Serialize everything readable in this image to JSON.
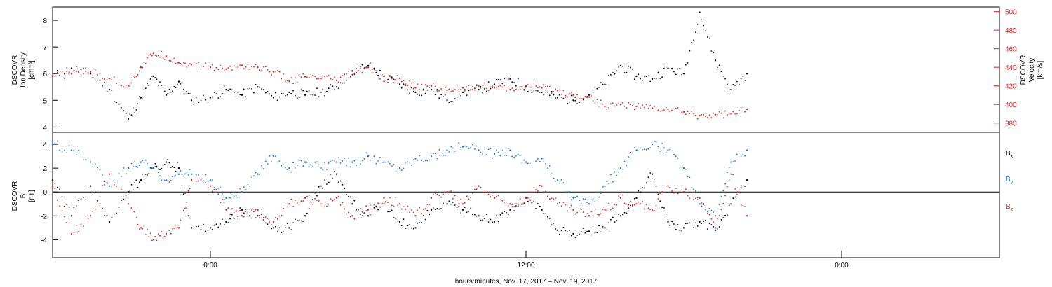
{
  "footer_label": "hours:minutes, Nov. 17, 2017 – Nov. 19, 2017",
  "chart_data": [
    {
      "type": "scatter",
      "panel": "plasma",
      "left_axis_label": [
        "DSCOVR",
        "Ion Density",
        "[cm⁻³]"
      ],
      "right_axis_label": [
        "DSCOVR",
        "Velocity",
        "[km/s]"
      ],
      "xlim": [
        -0.5,
        2.5
      ],
      "ylim_left": [
        3.8,
        8.5
      ],
      "ylim_right": [
        370,
        505
      ],
      "left_ticks": [
        4,
        5,
        6,
        7,
        8
      ],
      "right_ticks": [
        380,
        400,
        420,
        440,
        460,
        480,
        500
      ],
      "series": [
        {
          "axis": "left",
          "color": "#000000",
          "x": [
            -0.5,
            -0.44,
            -0.38,
            -0.32,
            -0.26,
            -0.22,
            -0.18,
            -0.14,
            -0.1,
            -0.06,
            0.0,
            0.05,
            0.1,
            0.15,
            0.2,
            0.25,
            0.3,
            0.35,
            0.4,
            0.45,
            0.5,
            0.55,
            0.6,
            0.65,
            0.7,
            0.75,
            0.8,
            0.85,
            0.9,
            0.95,
            1.0,
            1.05,
            1.1,
            1.15,
            1.2,
            1.25,
            1.3,
            1.35,
            1.4,
            1.45,
            1.5,
            1.55,
            1.6,
            1.65,
            1.7
          ],
          "y": [
            5.9,
            6.2,
            6.0,
            5.4,
            4.3,
            5.1,
            5.9,
            5.2,
            5.7,
            5.0,
            5.1,
            5.4,
            5.2,
            5.5,
            5.1,
            5.3,
            5.2,
            5.3,
            5.5,
            6.1,
            6.3,
            5.9,
            5.6,
            5.3,
            5.4,
            5.0,
            5.3,
            5.4,
            5.6,
            5.8,
            5.5,
            5.3,
            5.1,
            5.0,
            5.2,
            5.6,
            6.3,
            5.9,
            5.8,
            6.2,
            6.0,
            8.3,
            6.5,
            5.4,
            6.0
          ]
        },
        {
          "axis": "right",
          "color": "#e02020",
          "x": [
            -0.5,
            -0.44,
            -0.38,
            -0.32,
            -0.26,
            -0.22,
            -0.18,
            -0.14,
            -0.1,
            -0.06,
            0.0,
            0.05,
            0.1,
            0.15,
            0.2,
            0.25,
            0.3,
            0.35,
            0.4,
            0.45,
            0.5,
            0.55,
            0.6,
            0.65,
            0.7,
            0.75,
            0.8,
            0.85,
            0.9,
            0.95,
            1.0,
            1.05,
            1.1,
            1.15,
            1.2,
            1.25,
            1.3,
            1.35,
            1.4,
            1.45,
            1.5,
            1.55,
            1.6,
            1.65,
            1.7
          ],
          "y": [
            430,
            433,
            435,
            428,
            420,
            440,
            455,
            452,
            445,
            443,
            440,
            438,
            442,
            440,
            435,
            425,
            430,
            428,
            426,
            432,
            440,
            425,
            428,
            418,
            420,
            415,
            418,
            420,
            418,
            416,
            420,
            418,
            415,
            410,
            408,
            398,
            400,
            398,
            396,
            395,
            392,
            388,
            389,
            390,
            395
          ]
        }
      ]
    },
    {
      "type": "scatter",
      "panel": "magnetic",
      "left_axis_label": [
        "DSCOVR",
        "B",
        "[nT]"
      ],
      "xlim": [
        -0.5,
        2.5
      ],
      "ylim": [
        -5.5,
        5.0
      ],
      "ticks": [
        -4,
        -2,
        0,
        2,
        4
      ],
      "x_tick_labels": [
        {
          "label": "0:00",
          "x": 0.0
        },
        {
          "label": "12:00",
          "x": 1.0
        },
        {
          "label": "0:00",
          "x": 2.0
        }
      ],
      "zero_line": true,
      "legend": [
        {
          "label": "B",
          "sub": "x",
          "color": "#000000"
        },
        {
          "label": "B",
          "sub": "y",
          "color": "#1878d8"
        },
        {
          "label": "B",
          "sub": "z",
          "color": "#e02020"
        }
      ],
      "series": [
        {
          "color": "#000000",
          "x": [
            -0.5,
            -0.44,
            -0.38,
            -0.32,
            -0.26,
            -0.22,
            -0.18,
            -0.14,
            -0.1,
            -0.06,
            0.0,
            0.05,
            0.1,
            0.15,
            0.2,
            0.25,
            0.3,
            0.35,
            0.4,
            0.45,
            0.5,
            0.55,
            0.6,
            0.65,
            0.7,
            0.75,
            0.8,
            0.85,
            0.9,
            0.95,
            1.0,
            1.05,
            1.1,
            1.15,
            1.2,
            1.25,
            1.3,
            1.35,
            1.4,
            1.45,
            1.5,
            1.55,
            1.6,
            1.65,
            1.7
          ],
          "y": [
            1.0,
            -2.0,
            0.5,
            -2.5,
            0.0,
            1.0,
            2.0,
            2.5,
            2.0,
            -3.0,
            -3.0,
            -2.5,
            -1.5,
            -2.0,
            -3.0,
            -3.0,
            -2.0,
            0.5,
            1.5,
            -1.0,
            -2.0,
            -1.0,
            -2.5,
            -3.0,
            -1.5,
            -1.0,
            -1.5,
            -2.0,
            -2.5,
            -1.5,
            -0.5,
            -1.5,
            -3.2,
            -3.5,
            -3.3,
            -3.0,
            -2.0,
            -0.5,
            1.5,
            -2.5,
            -3.0,
            -2.5,
            -3.2,
            -1.0,
            1.0
          ]
        },
        {
          "color": "#1878d8",
          "x": [
            -0.5,
            -0.44,
            -0.38,
            -0.32,
            -0.26,
            -0.22,
            -0.18,
            -0.14,
            -0.1,
            -0.06,
            0.0,
            0.05,
            0.1,
            0.15,
            0.2,
            0.25,
            0.3,
            0.35,
            0.4,
            0.45,
            0.5,
            0.55,
            0.6,
            0.65,
            0.7,
            0.75,
            0.8,
            0.85,
            0.9,
            0.95,
            1.0,
            1.05,
            1.1,
            1.15,
            1.2,
            1.25,
            1.3,
            1.35,
            1.4,
            1.45,
            1.5,
            1.55,
            1.6,
            1.65,
            1.7
          ],
          "y": [
            4.0,
            3.5,
            2.5,
            0.5,
            2.0,
            2.5,
            2.0,
            1.0,
            1.5,
            1.5,
            1.0,
            -0.5,
            0.0,
            1.5,
            3.0,
            2.0,
            2.5,
            2.0,
            2.5,
            2.5,
            3.0,
            2.5,
            2.0,
            2.8,
            3.0,
            3.5,
            3.8,
            3.5,
            3.2,
            3.5,
            2.5,
            2.8,
            1.0,
            -0.5,
            -1.0,
            0.5,
            2.0,
            3.5,
            4.0,
            3.5,
            2.0,
            -1.0,
            -2.0,
            2.5,
            3.5
          ]
        },
        {
          "color": "#e02020",
          "x": [
            -0.5,
            -0.44,
            -0.38,
            -0.32,
            -0.26,
            -0.22,
            -0.18,
            -0.14,
            -0.1,
            -0.06,
            0.0,
            0.05,
            0.1,
            0.15,
            0.2,
            0.25,
            0.3,
            0.35,
            0.4,
            0.45,
            0.5,
            0.55,
            0.6,
            0.65,
            0.7,
            0.75,
            0.8,
            0.85,
            0.9,
            0.95,
            1.0,
            1.05,
            1.1,
            1.15,
            1.2,
            1.25,
            1.3,
            1.35,
            1.4,
            1.45,
            1.5,
            1.55,
            1.6,
            1.65,
            1.7
          ],
          "y": [
            0.5,
            -3.5,
            -2.0,
            1.5,
            -1.0,
            -3.0,
            -4.0,
            -3.5,
            -3.0,
            1.0,
            0.5,
            -1.5,
            -2.0,
            -1.5,
            -2.5,
            -1.0,
            -0.5,
            -1.0,
            -0.5,
            -2.0,
            -1.5,
            -0.5,
            -1.0,
            -2.0,
            -0.5,
            0.0,
            -1.0,
            0.5,
            -0.5,
            -1.0,
            -0.5,
            0.5,
            -1.0,
            -1.5,
            -2.0,
            -1.5,
            -0.5,
            -1.0,
            -1.5,
            0.5,
            0.0,
            -0.5,
            -3.0,
            1.5,
            -2.0
          ]
        }
      ]
    }
  ]
}
